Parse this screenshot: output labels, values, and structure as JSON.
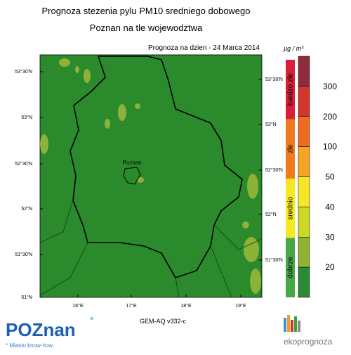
{
  "header": {
    "title": "Prognoza stezenia pylu PM10 sredniego dobowego",
    "subtitle": "Poznan na tle wojewodztwa",
    "forecast_date": "Prognoza na dzien -  24 Marca 2014"
  },
  "map": {
    "city_label": "Poznan",
    "left_lat_labels": [
      "53°30'N",
      "53°N",
      "52°30'N",
      "52°N",
      "51°30'N",
      "51°N"
    ],
    "right_lat_labels": [
      "53°30'N",
      "53°N",
      "52°30'N",
      "52°N",
      "51°30'N"
    ],
    "lon_labels": [
      "16°E",
      "17°E",
      "18°E",
      "19°E"
    ],
    "model": "GEM-AQ v332-c"
  },
  "colorbar": {
    "unit": "µg / m³",
    "colors": [
      "#8e2b3c",
      "#d4352d",
      "#ee6a21",
      "#f5a523",
      "#f7e625",
      "#cbd925",
      "#8fb233",
      "#2b8a35"
    ],
    "labels": [
      "300",
      "200",
      "100",
      "50",
      "40",
      "30",
      "20"
    ],
    "categories": [
      {
        "label": "bardzo zle",
        "color": "#d8203a"
      },
      {
        "label": "zle",
        "color": "#f07a20"
      },
      {
        "label": "srednio",
        "color": "#f5e820"
      },
      {
        "label": "dobrze",
        "color": "#45a848"
      }
    ]
  },
  "footer": {
    "logo": "POZnan",
    "tagline": "* Miasto know-how",
    "brand": "ekoprognoza"
  }
}
